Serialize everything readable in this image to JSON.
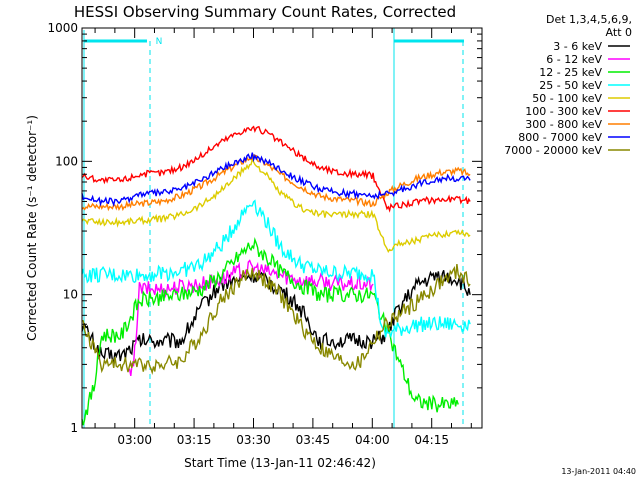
{
  "chart_data": {
    "type": "line",
    "title": "HESSI Observing Summary Count Rates, Corrected",
    "xlabel": "Start Time (13-Jan-11 02:46:42)",
    "ylabel": "Corrected Count Rate (s⁻¹ detector⁻¹)",
    "yscale": "log",
    "ylim": [
      1,
      1000
    ],
    "xlim_minutes": [
      0,
      101
    ],
    "x_tick_labels": [
      "03:00",
      "03:15",
      "03:30",
      "03:45",
      "04:00",
      "04:15"
    ],
    "x_tick_minutes": [
      13.3,
      28.3,
      43.3,
      58.3,
      73.3,
      88.3
    ],
    "y_tick_values": [
      1,
      10,
      100,
      1000
    ],
    "y_tick_labels": [
      "1",
      "10",
      "100",
      "1000"
    ],
    "legend_header": [
      "Det 1,3,4,5,6,9,",
      "Att 0"
    ],
    "night_marker": "N",
    "bands": [
      {
        "name": "3 - 6 keV",
        "color": "#000000",
        "minutes": [
          0,
          5,
          10,
          14.5,
          20,
          25,
          30,
          35,
          40,
          43,
          46,
          50,
          55,
          60,
          65,
          70,
          74,
          77,
          80,
          85,
          90,
          95,
          98
        ],
        "values": [
          6,
          3.5,
          3.5,
          4.5,
          4.5,
          4.5,
          8,
          12,
          13,
          14,
          13,
          11,
          8,
          4.5,
          4.5,
          4.5,
          4.5,
          5,
          8,
          12,
          14,
          13,
          10
        ]
      },
      {
        "name": "6 - 12 keV",
        "color": "#ff00ff",
        "minutes": [
          12,
          13,
          14.5,
          20,
          25,
          30,
          35,
          40,
          43,
          46,
          50,
          55,
          60,
          65,
          70,
          73.5
        ],
        "values": [
          2.5,
          2.8,
          11,
          11,
          11.5,
          12,
          13,
          15,
          16,
          15,
          14,
          13,
          12.5,
          12,
          12,
          12
        ]
      },
      {
        "name": "12 - 25 keV",
        "color": "#00ee00",
        "minutes": [
          0,
          3,
          5,
          10,
          14.5,
          20,
          25,
          30,
          35,
          40,
          43,
          46,
          50,
          55,
          60,
          65,
          70,
          73.5,
          84,
          89,
          92,
          95
        ],
        "values": [
          1.1,
          2,
          5,
          5,
          9,
          9.5,
          10,
          11,
          14,
          20,
          24,
          20,
          15,
          12,
          10,
          10,
          10,
          10,
          1.6,
          1.5,
          1.5,
          1.5
        ]
      },
      {
        "name": "25 - 50 keV",
        "color": "#00ffff",
        "minutes": [
          0,
          5,
          10,
          14.5,
          20,
          25,
          30,
          35,
          40,
          43,
          46,
          50,
          55,
          60,
          65,
          70,
          73.5,
          76,
          80,
          85,
          90,
          95,
          98
        ],
        "values": [
          14,
          14,
          14,
          14,
          14.5,
          15,
          17,
          23,
          38,
          52,
          38,
          23,
          17,
          15,
          14.5,
          14.5,
          14.5,
          5,
          5.5,
          6,
          6,
          6,
          6
        ]
      },
      {
        "name": "50 - 100 keV",
        "color": "#ddcc00",
        "minutes": [
          0,
          5,
          10,
          14.5,
          20,
          25,
          30,
          35,
          40,
          43,
          46,
          50,
          55,
          60,
          65,
          70,
          73.5,
          77,
          80,
          85,
          90,
          95,
          98
        ],
        "values": [
          36,
          35,
          35,
          36,
          37,
          40,
          47,
          60,
          82,
          100,
          82,
          58,
          45,
          40,
          40,
          40,
          40,
          22,
          24,
          26,
          28,
          30,
          28
        ]
      },
      {
        "name": "100 - 300 keV",
        "color": "#ff0000",
        "minutes": [
          0,
          5,
          10,
          14.5,
          20,
          25,
          30,
          35,
          40,
          43,
          46,
          50,
          55,
          60,
          65,
          70,
          73.5,
          77,
          80,
          85,
          90,
          95,
          98
        ],
        "values": [
          78,
          72,
          72,
          80,
          82,
          90,
          110,
          140,
          168,
          178,
          168,
          140,
          110,
          90,
          82,
          80,
          78,
          45,
          47,
          50,
          52,
          52,
          50
        ]
      },
      {
        "name": "300 - 800 keV",
        "color": "#ff7f00",
        "minutes": [
          0,
          5,
          10,
          14.5,
          20,
          25,
          30,
          35,
          40,
          43,
          46,
          50,
          55,
          60,
          65,
          70,
          73.5,
          77,
          80,
          85,
          90,
          95,
          98
        ],
        "values": [
          46,
          46,
          46,
          48,
          50,
          55,
          65,
          80,
          98,
          108,
          98,
          80,
          65,
          55,
          52,
          50,
          48,
          58,
          65,
          75,
          82,
          85,
          80
        ]
      },
      {
        "name": "800 - 7000 keV",
        "color": "#0000ff",
        "minutes": [
          0,
          5,
          10,
          14.5,
          20,
          25,
          30,
          35,
          40,
          43,
          46,
          50,
          55,
          60,
          65,
          70,
          73.5,
          77,
          80,
          85,
          90,
          95,
          98
        ],
        "values": [
          55,
          50,
          50,
          57,
          58,
          62,
          72,
          88,
          102,
          110,
          102,
          88,
          72,
          62,
          58,
          57,
          55,
          57,
          60,
          68,
          74,
          75,
          72
        ]
      },
      {
        "name": "7000 - 20000 keV",
        "color": "#888800",
        "minutes": [
          0,
          3,
          5,
          10,
          14.5,
          20,
          25,
          30,
          35,
          40,
          43,
          46,
          50,
          55,
          60,
          65,
          70,
          73.5,
          77,
          80,
          85,
          90,
          95,
          98
        ],
        "values": [
          6,
          4,
          3,
          3,
          3,
          3,
          3.2,
          5,
          9,
          13,
          15,
          13,
          10,
          6,
          4,
          3.2,
          3,
          4.5,
          6,
          7,
          9,
          12,
          15,
          12
        ]
      }
    ]
  },
  "footer": {
    "date_stamp": "13-Jan-2011 04:40"
  }
}
